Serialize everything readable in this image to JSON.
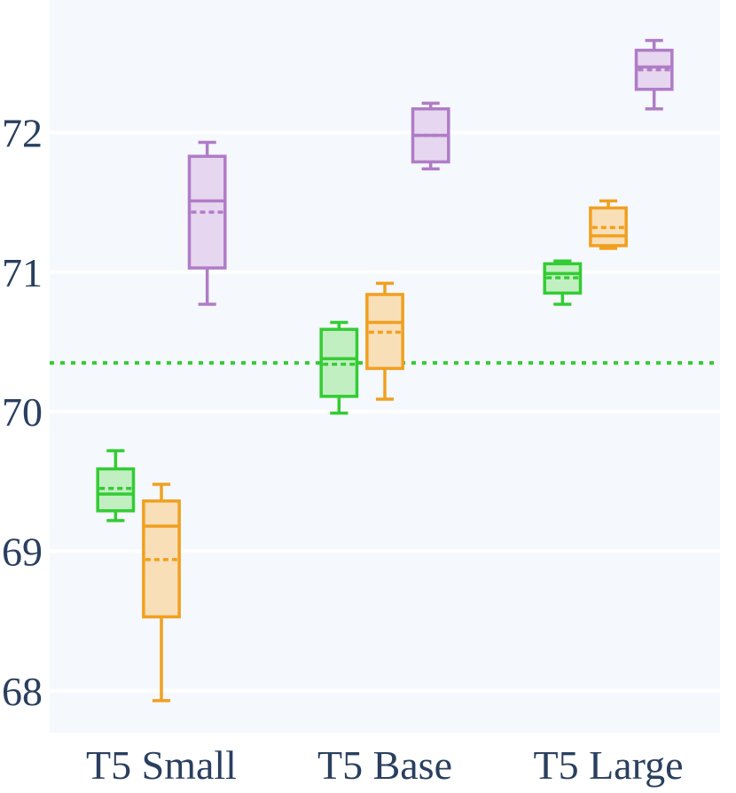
{
  "chart_data": {
    "type": "box",
    "title": "",
    "xlabel": "",
    "ylabel": "",
    "categories": [
      "T5 Small",
      "T5 Base",
      "T5 Large"
    ],
    "ylim": [
      67.7,
      72.95
    ],
    "yticks": [
      68,
      69,
      70,
      71,
      72
    ],
    "grid": true,
    "legend": "none",
    "reference_line": {
      "y": 70.35,
      "color": "#33cc33",
      "style": "dotted"
    },
    "series": [
      {
        "color": "#33cc33",
        "fill": "#c2efc2",
        "boxes": [
          {
            "min": 69.22,
            "q1": 69.29,
            "median": 69.41,
            "mean": 69.45,
            "q3": 69.59,
            "max": 69.72
          },
          {
            "min": 69.99,
            "q1": 70.11,
            "median": 70.38,
            "mean": 70.34,
            "q3": 70.59,
            "max": 70.64
          },
          {
            "min": 70.77,
            "q1": 70.85,
            "median": 70.99,
            "mean": 70.96,
            "q3": 71.06,
            "max": 71.08
          }
        ]
      },
      {
        "color": "#f0a020",
        "fill": "#f8dfb8",
        "boxes": [
          {
            "min": 67.93,
            "q1": 68.53,
            "median": 69.18,
            "mean": 68.94,
            "q3": 69.36,
            "max": 69.48
          },
          {
            "min": 70.09,
            "q1": 70.31,
            "median": 70.64,
            "mean": 70.57,
            "q3": 70.84,
            "max": 70.92
          },
          {
            "min": 71.17,
            "q1": 71.19,
            "median": 71.26,
            "mean": 71.32,
            "q3": 71.46,
            "max": 71.51
          }
        ]
      },
      {
        "color": "#b07cc6",
        "fill": "#e6d6ef",
        "boxes": [
          {
            "min": 70.77,
            "q1": 71.03,
            "median": 71.51,
            "mean": 71.43,
            "q3": 71.83,
            "max": 71.93
          },
          {
            "min": 71.74,
            "q1": 71.79,
            "median": 71.98,
            "mean": 71.98,
            "q3": 72.17,
            "max": 72.21
          },
          {
            "min": 72.17,
            "q1": 72.31,
            "median": 72.47,
            "mean": 72.45,
            "q3": 72.59,
            "max": 72.66
          }
        ]
      }
    ]
  }
}
